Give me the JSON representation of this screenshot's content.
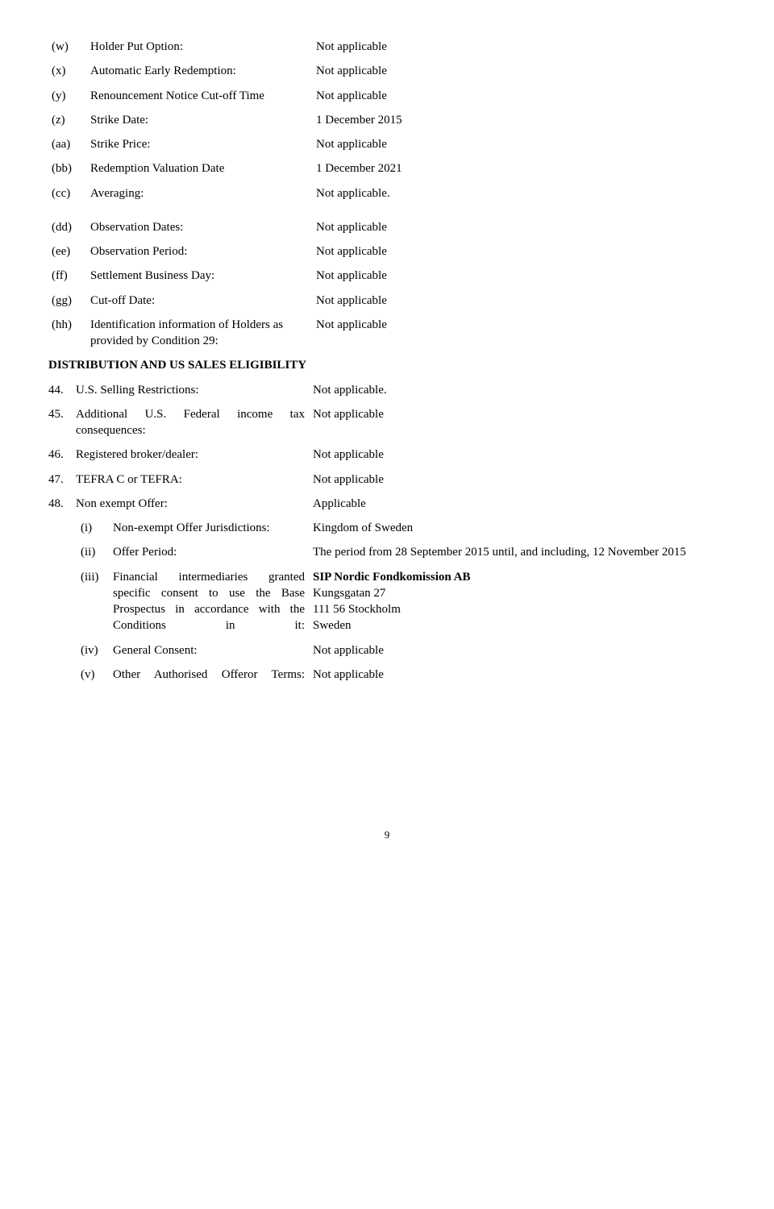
{
  "items_set1": [
    {
      "marker": "(w)",
      "label": "Holder Put Option:",
      "value": "Not applicable"
    },
    {
      "marker": "(x)",
      "label": "Automatic Early Redemption:",
      "value": "Not applicable"
    },
    {
      "marker": "(y)",
      "label": "Renouncement Notice Cut-off Time",
      "value": "Not applicable"
    },
    {
      "marker": "(z)",
      "label": "Strike Date:",
      "value": "1 December 2015"
    },
    {
      "marker": "(aa)",
      "label": "Strike Price:",
      "value": "Not applicable"
    },
    {
      "marker": "(bb)",
      "label": "Redemption Valuation Date",
      "value": "1 December 2021"
    },
    {
      "marker": "(cc)",
      "label": "Averaging:",
      "value": "Not applicable."
    }
  ],
  "items_set2": [
    {
      "marker": "(dd)",
      "label": "Observation Dates:",
      "value": "Not applicable"
    },
    {
      "marker": "(ee)",
      "label": "Observation Period:",
      "value": "Not applicable"
    },
    {
      "marker": "(ff)",
      "label": "Settlement Business Day:",
      "value": "Not applicable"
    },
    {
      "marker": "(gg)",
      "label": "Cut-off Date:",
      "value": "Not applicable"
    },
    {
      "marker": "(hh)",
      "label": "Identification information of Holders as provided by Condition 29:",
      "value": "Not applicable"
    }
  ],
  "section_heading": "DISTRIBUTION AND US SALES ELIGIBILITY",
  "main_items": [
    {
      "marker": "44.",
      "label": "U.S. Selling Restrictions:",
      "value": "Not applicable."
    },
    {
      "marker": "45.",
      "label": "Additional U.S. Federal income tax consequences:",
      "value": "Not applicable",
      "justify_label": true
    },
    {
      "marker": "46.",
      "label": "Registered broker/dealer:",
      "value": "Not applicable"
    },
    {
      "marker": "47.",
      "label": "TEFRA C or TEFRA:",
      "value": "Not applicable"
    },
    {
      "marker": "48.",
      "label": "Non exempt Offer:",
      "value": "Applicable"
    }
  ],
  "sub_items": {
    "i": {
      "marker": "(i)",
      "label": "Non-exempt Offer Jurisdictions:",
      "value": "Kingdom of Sweden"
    },
    "ii": {
      "marker": "(ii)",
      "label": "Offer Period:",
      "value": "The period from 28 September 2015 until, and including, 12 November 2015"
    },
    "iii": {
      "marker": "(iii)",
      "label": "Financial intermediaries granted specific consent to use the Base Prospectus in accordance with the Conditions in it:",
      "value_lines": [
        "SIP Nordic Fondkomission AB",
        "Kungsgatan 27",
        "111 56 Stockholm",
        "Sweden"
      ]
    },
    "iv": {
      "marker": "(iv)",
      "label": "General Consent:",
      "value": "Not applicable"
    },
    "v": {
      "marker": "(v)",
      "label": "Other Authorised Offeror Terms:",
      "value": "Not applicable"
    }
  },
  "page_number": "9"
}
